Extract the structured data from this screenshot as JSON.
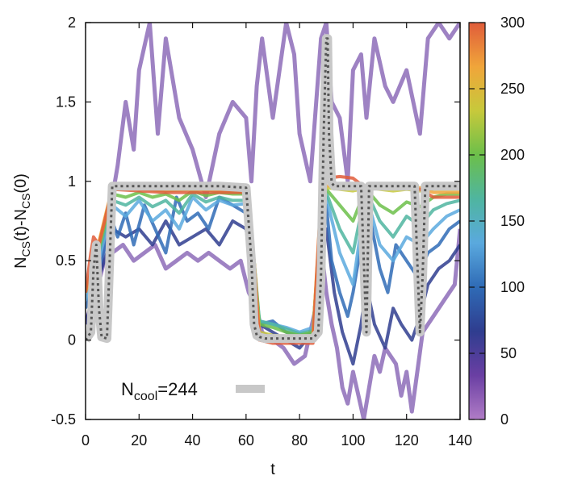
{
  "chart_data": {
    "type": "line",
    "title": "",
    "xlabel": "t",
    "ylabel_parts": [
      "N",
      "CS",
      "(t)-N",
      "CS",
      "(0)"
    ],
    "xlim": [
      0,
      140
    ],
    "ylim": [
      -0.5,
      2
    ],
    "xticks": [
      0,
      20,
      40,
      60,
      80,
      100,
      120,
      140
    ],
    "yticks": [
      -0.5,
      0,
      0.5,
      1,
      1.5,
      2
    ],
    "colorbar": {
      "range": [
        0,
        300
      ],
      "ticks": [
        0,
        50,
        100,
        150,
        200,
        250,
        300
      ],
      "colors": [
        "#b07cc6",
        "#6a3fa3",
        "#2f3d8f",
        "#2f6bb6",
        "#5aa9de",
        "#4fb5a0",
        "#6cbf4a",
        "#c7c93b",
        "#f0a53a",
        "#e05c3a"
      ]
    },
    "legend": {
      "label_parts": [
        "N",
        "cool",
        "=244"
      ],
      "color": "#c8c8c8",
      "placement": "bottom"
    },
    "reference_series": {
      "name": "Ncool=244",
      "x": [
        0,
        2,
        3,
        4,
        5,
        6,
        8,
        10,
        15,
        20,
        30,
        40,
        50,
        60,
        62,
        63,
        64,
        65,
        67,
        70,
        75,
        80,
        85,
        87,
        88,
        89,
        90,
        90.5,
        91,
        92,
        93,
        95,
        100,
        103,
        104,
        105,
        106,
        110,
        120,
        123,
        124,
        125,
        126,
        127,
        130,
        140
      ],
      "y": [
        0,
        0.05,
        0.45,
        0.6,
        0.2,
        0.02,
        0.01,
        0.97,
        0.97,
        0.97,
        0.97,
        0.97,
        0.97,
        0.96,
        0.5,
        0.1,
        0.03,
        0.02,
        0.01,
        0.01,
        0.01,
        0.01,
        0.01,
        0.05,
        0.4,
        1.3,
        1.9,
        1.9,
        1.3,
        0.99,
        0.97,
        0.97,
        0.97,
        0.97,
        0.5,
        0.05,
        0.97,
        0.97,
        0.97,
        0.97,
        0.5,
        0.05,
        0.4,
        0.97,
        0.97,
        0.97
      ]
    },
    "runs": [
      {
        "ncool": 20,
        "x": [
          0,
          5,
          8,
          12,
          15,
          18,
          20,
          24,
          27,
          30,
          35,
          40,
          45,
          50,
          55,
          60,
          62,
          64,
          66,
          70,
          75,
          78,
          80,
          84,
          88,
          90,
          92,
          95,
          98,
          100,
          103,
          105,
          108,
          112,
          115,
          120,
          125,
          128,
          132,
          136,
          140
        ],
        "y": [
          0.1,
          0.4,
          0.7,
          1.1,
          1.5,
          1.2,
          1.7,
          2.0,
          1.3,
          1.9,
          1.4,
          1.2,
          0.9,
          1.3,
          1.5,
          1.4,
          1.0,
          1.6,
          1.9,
          1.4,
          2.0,
          1.8,
          1.3,
          1.0,
          1.9,
          2.0,
          1.5,
          1.4,
          1.0,
          1.7,
          1.8,
          1.4,
          1.9,
          1.6,
          1.5,
          1.7,
          1.3,
          1.9,
          2.0,
          1.9,
          2.0
        ]
      },
      {
        "ncool": 40,
        "x": [
          0,
          4,
          7,
          10,
          14,
          18,
          22,
          26,
          30,
          34,
          38,
          42,
          46,
          50,
          54,
          58,
          61,
          64,
          66,
          70,
          74,
          78,
          82,
          86,
          88,
          90,
          92,
          94,
          96,
          98,
          100,
          102,
          104,
          106,
          108,
          110,
          112,
          116,
          118,
          120,
          122,
          124,
          126,
          130,
          134,
          138,
          140
        ],
        "y": [
          0.1,
          0.3,
          0.5,
          0.55,
          0.6,
          0.5,
          0.55,
          0.6,
          0.45,
          0.5,
          0.55,
          0.5,
          0.55,
          0.5,
          0.45,
          0.5,
          0.3,
          0.2,
          0.05,
          0.0,
          -0.05,
          -0.15,
          -0.1,
          0.2,
          0.6,
          0.3,
          0.1,
          -0.05,
          -0.3,
          -0.4,
          -0.2,
          -0.35,
          -0.5,
          -0.3,
          -0.1,
          -0.2,
          -0.05,
          -0.15,
          -0.35,
          -0.2,
          -0.45,
          -0.2,
          0.05,
          0.15,
          0.25,
          0.35,
          0.7
        ]
      },
      {
        "ncool": 70,
        "x": [
          0,
          5,
          8,
          10,
          15,
          20,
          25,
          30,
          35,
          40,
          45,
          50,
          55,
          60,
          63,
          65,
          70,
          75,
          80,
          85,
          88,
          90,
          93,
          96,
          100,
          103,
          105,
          108,
          112,
          115,
          118,
          122,
          125,
          128,
          132,
          136,
          140
        ],
        "y": [
          0.1,
          0.4,
          0.55,
          0.7,
          0.65,
          0.7,
          0.6,
          0.75,
          0.6,
          0.65,
          0.7,
          0.6,
          0.75,
          0.7,
          0.35,
          0.1,
          0.05,
          0.0,
          -0.05,
          0.05,
          0.5,
          0.7,
          0.3,
          0.05,
          -0.15,
          0.1,
          0.35,
          0.1,
          -0.05,
          0.2,
          0.1,
          0.0,
          0.15,
          0.35,
          0.45,
          0.5,
          0.6
        ]
      },
      {
        "ncool": 100,
        "x": [
          0,
          5,
          10,
          12,
          15,
          18,
          22,
          26,
          30,
          34,
          38,
          42,
          46,
          50,
          55,
          60,
          63,
          65,
          70,
          75,
          80,
          85,
          88,
          90,
          92,
          95,
          98,
          100,
          103,
          106,
          110,
          113,
          116,
          120,
          124,
          128,
          132,
          136,
          140
        ],
        "y": [
          0.2,
          0.45,
          0.75,
          0.65,
          0.8,
          0.6,
          0.85,
          0.7,
          0.55,
          0.9,
          0.75,
          0.8,
          0.7,
          0.9,
          0.85,
          0.8,
          0.4,
          0.1,
          0.12,
          0.05,
          0.03,
          0.05,
          0.6,
          0.85,
          0.5,
          0.3,
          0.15,
          0.3,
          0.6,
          0.8,
          0.45,
          0.3,
          0.6,
          0.5,
          0.4,
          0.55,
          0.6,
          0.7,
          0.75
        ]
      },
      {
        "ncool": 130,
        "x": [
          0,
          5,
          10,
          15,
          20,
          25,
          30,
          35,
          40,
          45,
          50,
          55,
          60,
          63,
          65,
          70,
          75,
          80,
          85,
          88,
          90,
          95,
          100,
          103,
          106,
          110,
          115,
          120,
          125,
          130,
          135,
          140
        ],
        "y": [
          0.25,
          0.5,
          0.85,
          0.78,
          0.88,
          0.75,
          0.82,
          0.7,
          0.9,
          0.82,
          0.88,
          0.85,
          0.86,
          0.45,
          0.12,
          0.1,
          0.08,
          0.05,
          0.08,
          0.7,
          0.9,
          0.55,
          0.35,
          0.7,
          0.85,
          0.6,
          0.5,
          0.65,
          0.6,
          0.7,
          0.78,
          0.82
        ]
      },
      {
        "ncool": 160,
        "x": [
          0,
          5,
          10,
          15,
          20,
          25,
          30,
          35,
          40,
          45,
          50,
          55,
          60,
          63,
          65,
          70,
          75,
          80,
          85,
          88,
          90,
          95,
          100,
          103,
          106,
          110,
          115,
          120,
          125,
          130,
          135,
          140
        ],
        "y": [
          0.3,
          0.55,
          0.88,
          0.85,
          0.9,
          0.84,
          0.88,
          0.8,
          0.92,
          0.87,
          0.9,
          0.88,
          0.88,
          0.5,
          0.12,
          0.1,
          0.07,
          0.04,
          0.06,
          0.75,
          0.93,
          0.7,
          0.55,
          0.8,
          0.9,
          0.75,
          0.65,
          0.78,
          0.72,
          0.82,
          0.86,
          0.88
        ]
      },
      {
        "ncool": 190,
        "x": [
          0,
          5,
          10,
          15,
          20,
          25,
          30,
          35,
          40,
          45,
          50,
          55,
          60,
          63,
          65,
          70,
          75,
          80,
          85,
          88,
          90,
          95,
          100,
          103,
          106,
          110,
          115,
          120,
          125,
          130,
          135,
          140
        ],
        "y": [
          0.32,
          0.58,
          0.92,
          0.9,
          0.93,
          0.9,
          0.92,
          0.88,
          0.94,
          0.91,
          0.93,
          0.92,
          0.92,
          0.5,
          0.1,
          0.08,
          0.05,
          0.03,
          0.05,
          0.8,
          0.95,
          0.85,
          0.75,
          0.88,
          0.93,
          0.85,
          0.8,
          0.87,
          0.84,
          0.9,
          0.92,
          0.92
        ]
      },
      {
        "ncool": 220,
        "x": [
          0,
          5,
          10,
          20,
          30,
          40,
          50,
          60,
          63,
          65,
          70,
          80,
          85,
          88,
          90,
          95,
          100,
          103,
          106,
          110,
          115,
          120,
          125,
          130,
          140
        ],
        "y": [
          0.3,
          0.6,
          0.95,
          0.95,
          0.94,
          0.95,
          0.94,
          0.94,
          0.5,
          0.05,
          0.03,
          0.02,
          0.03,
          0.85,
          0.96,
          0.95,
          0.94,
          0.95,
          0.96,
          0.95,
          0.94,
          0.95,
          0.94,
          0.95,
          0.95
        ]
      },
      {
        "ncool": 260,
        "x": [
          0,
          5,
          10,
          20,
          30,
          40,
          50,
          60,
          63,
          65,
          70,
          80,
          85,
          88,
          90,
          95,
          100,
          103,
          106,
          110,
          120,
          125,
          130,
          140
        ],
        "y": [
          0.3,
          0.62,
          0.96,
          0.96,
          0.95,
          0.95,
          0.95,
          0.95,
          0.5,
          0.03,
          0.02,
          0.02,
          0.02,
          0.9,
          0.97,
          0.98,
          0.98,
          0.97,
          0.97,
          0.97,
          0.97,
          0.96,
          0.93,
          0.93
        ]
      },
      {
        "ncool": 300,
        "x": [
          0,
          2,
          3,
          5,
          10,
          20,
          30,
          40,
          50,
          60,
          63,
          65,
          70,
          80,
          85,
          88,
          90,
          95,
          100,
          103,
          106,
          110,
          120,
          125,
          130,
          140
        ],
        "y": [
          0.3,
          0.55,
          0.65,
          0.6,
          0.95,
          0.94,
          0.93,
          0.93,
          0.93,
          0.93,
          0.5,
          0.0,
          -0.02,
          -0.02,
          -0.02,
          0.9,
          1.02,
          1.03,
          1.02,
          0.98,
          0.96,
          0.96,
          0.96,
          0.95,
          0.9,
          0.9
        ]
      }
    ]
  }
}
